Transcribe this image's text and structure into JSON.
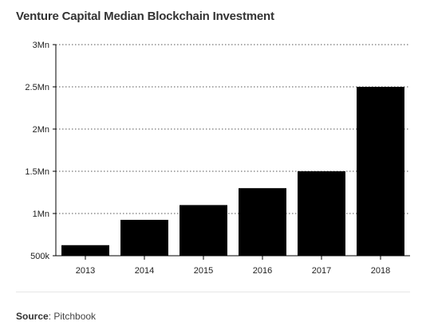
{
  "chart_data": {
    "type": "bar",
    "title": "Venture Capital Median Blockchain Investment",
    "categories": [
      "2013",
      "2014",
      "2015",
      "2016",
      "2017",
      "2018"
    ],
    "values": [
      625000,
      925000,
      1100000,
      1300000,
      1500000,
      2500000
    ],
    "ylim": [
      500000,
      3000000
    ],
    "yticks": [
      {
        "value": 500000,
        "label": "500k"
      },
      {
        "value": 1000000,
        "label": "1Mn"
      },
      {
        "value": 1500000,
        "label": "1.5Mn"
      },
      {
        "value": 2000000,
        "label": "2Mn"
      },
      {
        "value": 2500000,
        "label": "2.5Mn"
      },
      {
        "value": 3000000,
        "label": "3Mn"
      }
    ],
    "bar_color": "#000000",
    "grid": "dotted horizontal",
    "legend": "none"
  },
  "source": {
    "label": "Source",
    "text": ": Pitchbook"
  }
}
